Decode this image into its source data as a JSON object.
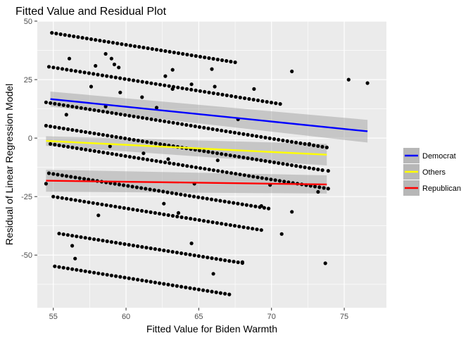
{
  "chart_data": {
    "type": "scatter",
    "title": "Fitted Value and Residual Plot",
    "xlabel": "Fitted Value for Biden Warmth",
    "ylabel": "Residual of Linear Regression Model",
    "xlim": [
      53.9,
      77.9
    ],
    "ylim": [
      -72.5,
      50.0
    ],
    "x_ticks": [
      55,
      60,
      65,
      70,
      75
    ],
    "y_ticks": [
      -50,
      -25,
      0,
      25,
      50
    ],
    "grid": true,
    "legend": {
      "position": "right",
      "entries": [
        {
          "name": "Democrat",
          "color": "#0000ff"
        },
        {
          "name": "Others",
          "color": "#ffff00"
        },
        {
          "name": "Republican",
          "color": "#ff0000"
        }
      ]
    },
    "points_description": "Residuals form parallel diagonal bands (slope -1) because the response is discrete.",
    "bands": [
      {
        "x_start": 54.9,
        "x_end": 67.5,
        "y_at_start": 45.0
      },
      {
        "x_start": 54.7,
        "x_end": 70.6,
        "y_at_start": 30.5
      },
      {
        "x_start": 54.5,
        "x_end": 73.8,
        "y_at_start": 15.3
      },
      {
        "x_start": 54.5,
        "x_end": 73.5,
        "y_at_start": 5.3
      },
      {
        "x_start": 54.8,
        "x_end": 73.9,
        "y_at_start": -2.5
      },
      {
        "x_start": 54.7,
        "x_end": 69.8,
        "y_at_start": -15.0
      },
      {
        "x_start": 55.0,
        "x_end": 69.3,
        "y_at_start": -25.0
      },
      {
        "x_start": 55.4,
        "x_end": 68.0,
        "y_at_start": -40.8
      },
      {
        "x_start": 55.1,
        "x_end": 67.1,
        "y_at_start": -54.8
      }
    ],
    "scattered_points": [
      [
        56.1,
        34.0
      ],
      [
        57.9,
        30.9
      ],
      [
        58.6,
        36.0
      ],
      [
        59.0,
        34.0
      ],
      [
        59.2,
        31.5
      ],
      [
        59.5,
        30.2
      ],
      [
        62.7,
        26.5
      ],
      [
        63.2,
        29.2
      ],
      [
        65.9,
        29.5
      ],
      [
        68.8,
        21.0
      ],
      [
        71.4,
        28.5
      ],
      [
        75.3,
        25.0
      ],
      [
        76.6,
        23.5
      ],
      [
        57.6,
        22.0
      ],
      [
        58.6,
        13.5
      ],
      [
        59.6,
        19.5
      ],
      [
        61.1,
        17.5
      ],
      [
        62.1,
        13.0
      ],
      [
        63.2,
        21.0
      ],
      [
        64.5,
        23.0
      ],
      [
        66.1,
        22.0
      ],
      [
        67.7,
        8.0
      ],
      [
        72.6,
        -2.5
      ],
      [
        73.9,
        -14.0
      ],
      [
        58.9,
        -3.5
      ],
      [
        61.2,
        -6.5
      ],
      [
        62.9,
        -9.0
      ],
      [
        69.9,
        -20.0
      ],
      [
        64.7,
        -19.5
      ],
      [
        66.3,
        -9.5
      ],
      [
        54.5,
        -19.5
      ],
      [
        56.3,
        -46.0
      ],
      [
        56.5,
        -51.5
      ],
      [
        58.1,
        -33.0
      ],
      [
        62.6,
        -28.0
      ],
      [
        63.6,
        -32.0
      ],
      [
        64.5,
        -45.0
      ],
      [
        66.0,
        -58.0
      ],
      [
        68.0,
        -53.0
      ],
      [
        69.3,
        -29.0
      ],
      [
        70.7,
        -41.0
      ],
      [
        71.4,
        -31.5
      ],
      [
        73.2,
        -23.0
      ],
      [
        73.7,
        -53.5
      ],
      [
        55.9,
        10.0
      ]
    ],
    "series": [
      {
        "name": "Democrat",
        "color": "#0000ff",
        "x": [
          54.8,
          76.6
        ],
        "y": [
          16.7,
          2.9
        ],
        "ci_lower": [
          13.5,
          -1.9
        ],
        "ci_upper": [
          19.9,
          7.8
        ]
      },
      {
        "name": "Others",
        "color": "#ffff00",
        "x": [
          54.5,
          73.8
        ],
        "y": [
          -1.2,
          -7.1
        ],
        "ci_lower": [
          -3.3,
          -11.7
        ],
        "ci_upper": [
          0.8,
          -2.5
        ]
      },
      {
        "name": "Republican",
        "color": "#ff0000",
        "x": [
          54.5,
          73.8
        ],
        "y": [
          -18.2,
          -19.8
        ],
        "ci_lower": [
          -22.9,
          -23.7
        ],
        "ci_upper": [
          -13.5,
          -15.9
        ]
      }
    ]
  }
}
